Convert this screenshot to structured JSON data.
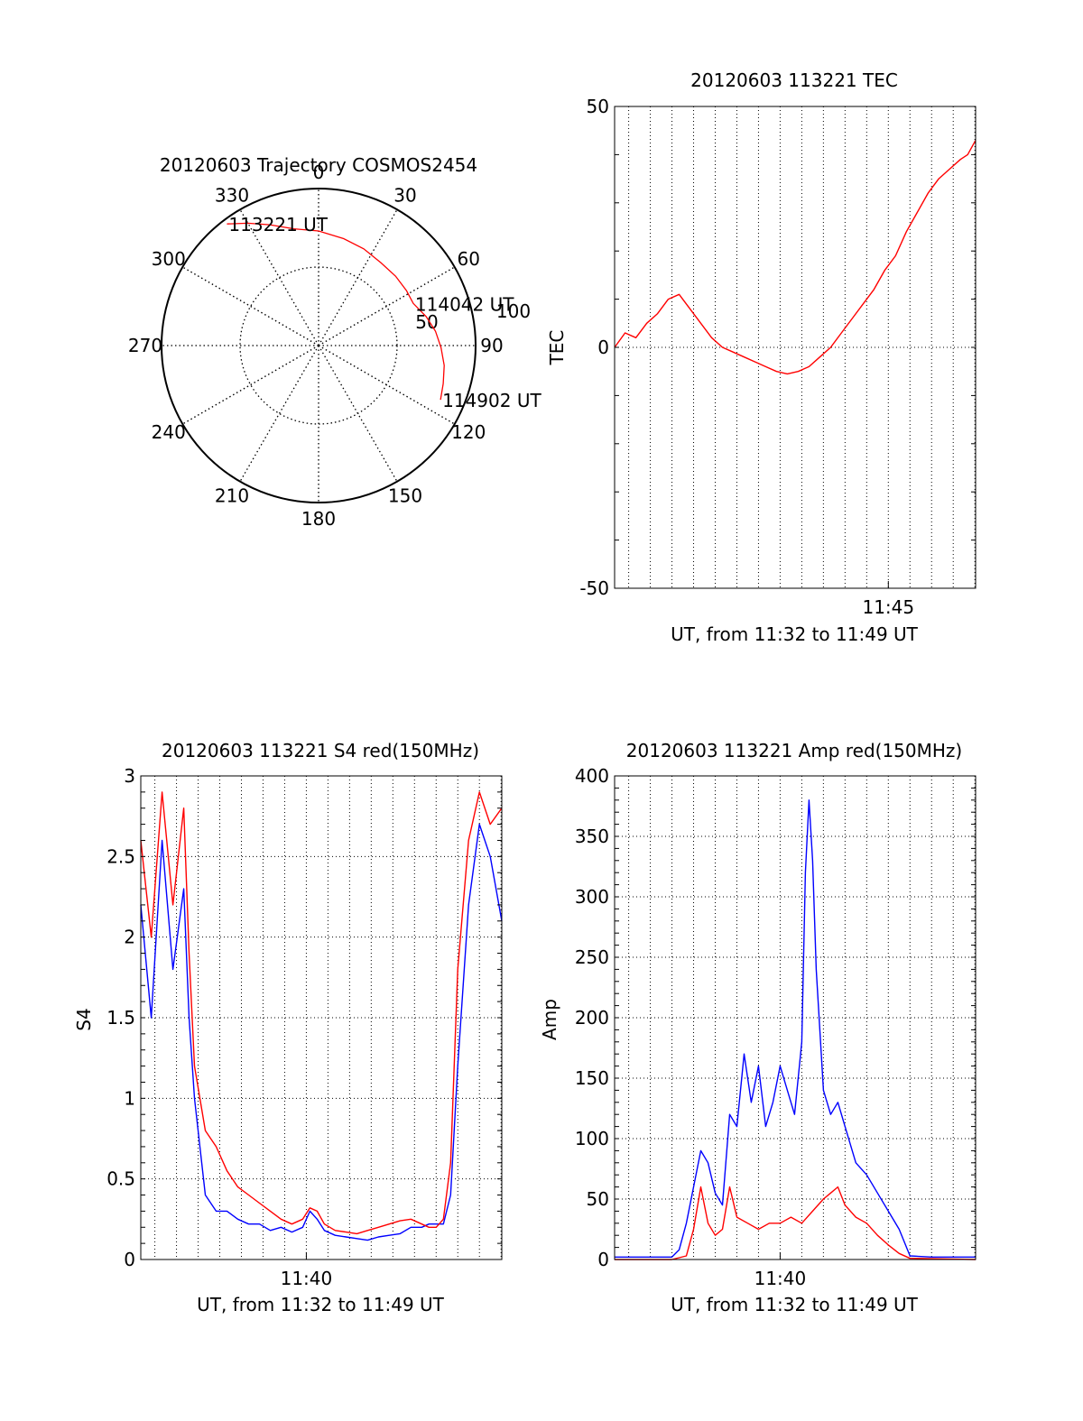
{
  "colors": {
    "red": "#ff0000",
    "blue": "#0000ff",
    "axis": "#000000",
    "background": "#ffffff"
  },
  "chart_data": [
    {
      "id": "trajectory",
      "type": "polar",
      "title": "20120603 Trajectory COSMOS2454",
      "angle_labels": [
        "0",
        "30",
        "60",
        "90",
        "120",
        "150",
        "180",
        "210",
        "240",
        "270",
        "300",
        "330"
      ],
      "angle_values": [
        0,
        30,
        60,
        90,
        120,
        150,
        180,
        210,
        240,
        270,
        300,
        330
      ],
      "radius_labels": [
        "50",
        "100"
      ],
      "radius_values": [
        50,
        100
      ],
      "radial_axis": "zenith angle, center 0 to rim 100",
      "grid": true,
      "trajectory_color": "red",
      "trajectory": [
        {
          "az": 323,
          "r": 97
        },
        {
          "az": 330,
          "r": 90
        },
        {
          "az": 338,
          "r": 83
        },
        {
          "az": 348,
          "r": 76
        },
        {
          "az": 0,
          "r": 73
        },
        {
          "az": 13,
          "r": 70
        },
        {
          "az": 25,
          "r": 68
        },
        {
          "az": 37,
          "r": 66
        },
        {
          "az": 48,
          "r": 66
        },
        {
          "az": 58,
          "r": 66
        },
        {
          "az": 66,
          "r": 66
        },
        {
          "az": 75,
          "r": 71
        },
        {
          "az": 83,
          "r": 75
        },
        {
          "az": 91,
          "r": 78
        },
        {
          "az": 99,
          "r": 81
        },
        {
          "az": 107,
          "r": 83
        },
        {
          "az": 114,
          "r": 85
        }
      ],
      "annotations": [
        {
          "text": "113221 UT",
          "az": 323,
          "r": 97
        },
        {
          "text": "114042 UT",
          "az": 66,
          "r": 66
        },
        {
          "text": "114902 UT",
          "az": 114,
          "r": 85
        }
      ]
    },
    {
      "id": "tec",
      "type": "line",
      "title": "20120603 113221 TEC",
      "xlabel": "UT, from 11:32 to 11:49 UT",
      "ylabel": "TEC",
      "xlim": [
        "11:32:21",
        "11:49:02"
      ],
      "ylim": [
        -50,
        50
      ],
      "yticks": [
        "-50",
        "0",
        "50"
      ],
      "xticks": [
        {
          "label": "11:45",
          "time": "11:45:00"
        }
      ],
      "grid": true,
      "series": [
        {
          "color": "red",
          "x": [
            "11:32:21",
            "11:32:50",
            "11:33:20",
            "11:33:50",
            "11:34:20",
            "11:34:50",
            "11:35:20",
            "11:35:50",
            "11:36:20",
            "11:36:50",
            "11:37:20",
            "11:37:50",
            "11:38:20",
            "11:38:50",
            "11:39:20",
            "11:39:50",
            "11:40:20",
            "11:40:50",
            "11:41:20",
            "11:41:50",
            "11:42:20",
            "11:42:50",
            "11:43:20",
            "11:43:50",
            "11:44:20",
            "11:44:50",
            "11:45:20",
            "11:45:50",
            "11:46:20",
            "11:46:50",
            "11:47:20",
            "11:47:50",
            "11:48:20",
            "11:48:40",
            "11:49:02"
          ],
          "values": [
            0,
            3,
            2,
            5,
            7,
            10,
            11,
            8,
            5,
            2,
            0,
            -1,
            -2,
            -3,
            -4,
            -5,
            -5.5,
            -5,
            -4,
            -2,
            0,
            3,
            6,
            9,
            12,
            16,
            19,
            24,
            28,
            32,
            35,
            37,
            39,
            40,
            43
          ]
        }
      ]
    },
    {
      "id": "s4",
      "type": "line",
      "title": "20120603 113221 S4 red(150MHz)",
      "xlabel": "UT, from 11:32 to 11:49 UT",
      "ylabel": "S4",
      "xlim": [
        "11:32:21",
        "11:49:02"
      ],
      "ylim": [
        0,
        3
      ],
      "yticks": [
        "0",
        "0.5",
        "1",
        "1.5",
        "2",
        "2.5",
        "3"
      ],
      "xticks": [
        {
          "label": "11:40",
          "time": "11:40:00"
        }
      ],
      "grid": true,
      "series": [
        {
          "color": "blue",
          "x": [
            "11:32:21",
            "11:32:50",
            "11:33:20",
            "11:33:50",
            "11:34:20",
            "11:34:35",
            "11:34:50",
            "11:35:20",
            "11:35:50",
            "11:36:20",
            "11:36:50",
            "11:37:20",
            "11:37:50",
            "11:38:20",
            "11:38:50",
            "11:39:20",
            "11:39:50",
            "11:40:10",
            "11:40:30",
            "11:40:50",
            "11:41:20",
            "11:41:50",
            "11:42:20",
            "11:42:50",
            "11:43:20",
            "11:43:50",
            "11:44:20",
            "11:44:50",
            "11:45:20",
            "11:45:40",
            "11:46:00",
            "11:46:20",
            "11:46:40",
            "11:47:00",
            "11:47:30",
            "11:48:00",
            "11:48:30",
            "11:49:02"
          ],
          "values": [
            2.2,
            1.5,
            2.6,
            1.8,
            2.3,
            1.5,
            1.0,
            0.4,
            0.3,
            0.3,
            0.25,
            0.22,
            0.22,
            0.18,
            0.2,
            0.17,
            0.2,
            0.3,
            0.25,
            0.18,
            0.15,
            0.14,
            0.13,
            0.12,
            0.14,
            0.15,
            0.16,
            0.2,
            0.2,
            0.22,
            0.22,
            0.22,
            0.4,
            1.2,
            2.2,
            2.7,
            2.5,
            2.1
          ]
        },
        {
          "color": "red",
          "x": [
            "11:32:21",
            "11:32:50",
            "11:33:20",
            "11:33:50",
            "11:34:20",
            "11:34:35",
            "11:34:50",
            "11:35:20",
            "11:35:50",
            "11:36:20",
            "11:36:50",
            "11:37:20",
            "11:37:50",
            "11:38:20",
            "11:38:50",
            "11:39:20",
            "11:39:50",
            "11:40:10",
            "11:40:30",
            "11:40:50",
            "11:41:20",
            "11:41:50",
            "11:42:20",
            "11:42:50",
            "11:43:20",
            "11:43:50",
            "11:44:20",
            "11:44:50",
            "11:45:20",
            "11:45:40",
            "11:46:00",
            "11:46:20",
            "11:46:40",
            "11:47:00",
            "11:47:30",
            "11:48:00",
            "11:48:30",
            "11:49:02"
          ],
          "values": [
            2.6,
            2.0,
            2.9,
            2.2,
            2.8,
            1.9,
            1.2,
            0.8,
            0.7,
            0.55,
            0.45,
            0.4,
            0.35,
            0.3,
            0.25,
            0.22,
            0.25,
            0.32,
            0.3,
            0.22,
            0.18,
            0.17,
            0.16,
            0.18,
            0.2,
            0.22,
            0.24,
            0.25,
            0.22,
            0.2,
            0.2,
            0.25,
            0.6,
            1.8,
            2.6,
            2.9,
            2.7,
            2.8
          ]
        }
      ]
    },
    {
      "id": "amp",
      "type": "line",
      "title": "20120603 113221 Amp red(150MHz)",
      "xlabel": "UT, from 11:32 to 11:49 UT",
      "ylabel": "Amp",
      "xlim": [
        "11:32:21",
        "11:49:02"
      ],
      "ylim": [
        0,
        400
      ],
      "yticks": [
        "0",
        "50",
        "100",
        "150",
        "200",
        "250",
        "300",
        "350",
        "400"
      ],
      "xticks": [
        {
          "label": "11:40",
          "time": "11:40:00"
        }
      ],
      "grid": true,
      "series": [
        {
          "color": "blue",
          "x": [
            "11:32:21",
            "11:33:00",
            "11:34:00",
            "11:35:00",
            "11:35:20",
            "11:35:40",
            "11:36:00",
            "11:36:20",
            "11:36:40",
            "11:37:00",
            "11:37:20",
            "11:37:40",
            "11:38:00",
            "11:38:20",
            "11:38:40",
            "11:39:00",
            "11:39:20",
            "11:39:40",
            "11:40:00",
            "11:40:20",
            "11:40:40",
            "11:41:00",
            "11:41:10",
            "11:41:20",
            "11:41:30",
            "11:41:40",
            "11:42:00",
            "11:42:20",
            "11:42:40",
            "11:43:00",
            "11:43:30",
            "11:44:00",
            "11:44:30",
            "11:45:00",
            "11:45:30",
            "11:46:00",
            "11:47:00",
            "11:48:00",
            "11:49:02"
          ],
          "values": [
            2,
            2,
            2,
            2,
            8,
            30,
            60,
            90,
            80,
            55,
            45,
            120,
            110,
            170,
            130,
            160,
            110,
            130,
            160,
            140,
            120,
            180,
            320,
            380,
            330,
            240,
            140,
            120,
            130,
            110,
            80,
            70,
            55,
            40,
            25,
            3,
            2,
            2,
            2
          ]
        },
        {
          "color": "red",
          "x": [
            "11:32:21",
            "11:35:00",
            "11:35:40",
            "11:36:00",
            "11:36:20",
            "11:36:40",
            "11:37:00",
            "11:37:20",
            "11:37:40",
            "11:38:00",
            "11:38:30",
            "11:39:00",
            "11:39:30",
            "11:40:00",
            "11:40:30",
            "11:41:00",
            "11:41:30",
            "11:42:00",
            "11:42:20",
            "11:42:40",
            "11:43:00",
            "11:43:30",
            "11:44:00",
            "11:44:30",
            "11:45:00",
            "11:45:30",
            "11:46:00",
            "11:49:02"
          ],
          "values": [
            0,
            0,
            3,
            25,
            60,
            30,
            20,
            25,
            60,
            35,
            30,
            25,
            30,
            30,
            35,
            30,
            40,
            50,
            55,
            60,
            45,
            35,
            30,
            20,
            12,
            5,
            1,
            0
          ]
        }
      ]
    }
  ]
}
